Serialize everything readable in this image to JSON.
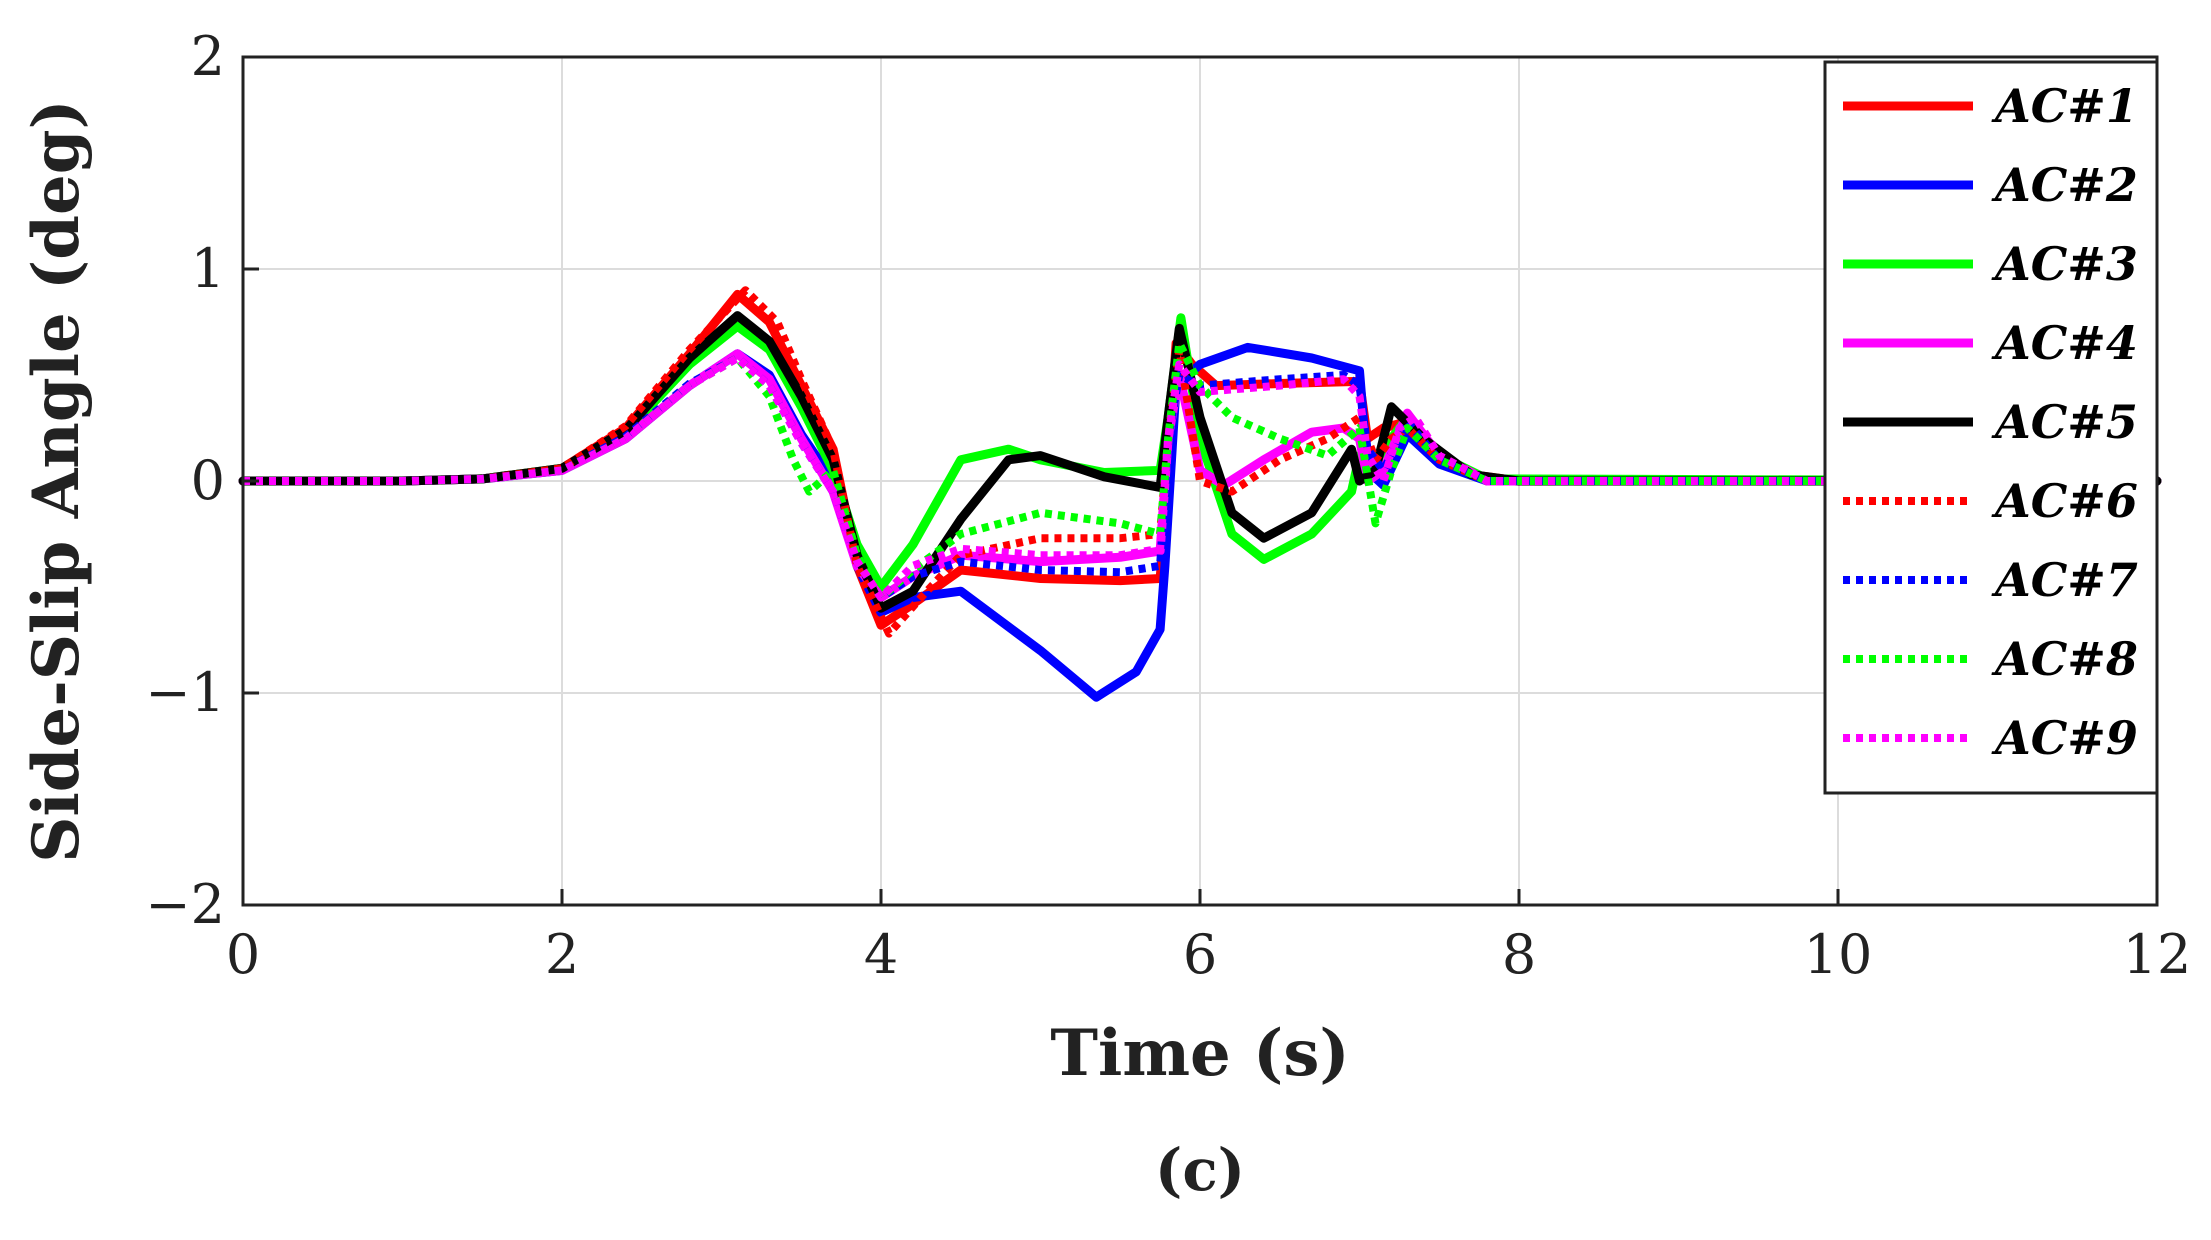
{
  "chart_data": {
    "type": "line",
    "xlabel": "Time (s)",
    "ylabel": "Side-Slip Angle (deg)",
    "caption": "(c)",
    "xlim": [
      0,
      12
    ],
    "ylim": [
      -2,
      2
    ],
    "xticks": [
      "0",
      "2",
      "4",
      "6",
      "8",
      "10",
      "12"
    ],
    "yticks": [
      "2",
      "1",
      "0",
      "−1",
      "−2"
    ],
    "grid": true,
    "legend_position": "top-right",
    "series": [
      {
        "name": "AC#1",
        "color": "#ff0000",
        "style": "solid",
        "points": [
          [
            0,
            0
          ],
          [
            1,
            0
          ],
          [
            1.5,
            0.01
          ],
          [
            2,
            0.06
          ],
          [
            2.4,
            0.25
          ],
          [
            2.8,
            0.6
          ],
          [
            3.1,
            0.88
          ],
          [
            3.3,
            0.75
          ],
          [
            3.5,
            0.45
          ],
          [
            3.7,
            0.15
          ],
          [
            3.85,
            -0.4
          ],
          [
            4.0,
            -0.68
          ],
          [
            4.2,
            -0.58
          ],
          [
            4.5,
            -0.42
          ],
          [
            5.0,
            -0.46
          ],
          [
            5.5,
            -0.47
          ],
          [
            5.75,
            -0.46
          ],
          [
            5.78,
            -0.2
          ],
          [
            5.85,
            0.65
          ],
          [
            5.95,
            0.55
          ],
          [
            6.1,
            0.45
          ],
          [
            6.5,
            0.46
          ],
          [
            7.0,
            0.47
          ],
          [
            7.05,
            0.2
          ],
          [
            7.15,
            0.25
          ],
          [
            7.3,
            0.28
          ],
          [
            7.5,
            0.12
          ],
          [
            7.7,
            0.03
          ],
          [
            8.0,
            0
          ],
          [
            12,
            0
          ]
        ]
      },
      {
        "name": "AC#2",
        "color": "#0000ff",
        "style": "solid",
        "points": [
          [
            0,
            0
          ],
          [
            1,
            0
          ],
          [
            1.5,
            0.01
          ],
          [
            2,
            0.05
          ],
          [
            2.4,
            0.2
          ],
          [
            2.8,
            0.45
          ],
          [
            3.1,
            0.6
          ],
          [
            3.3,
            0.5
          ],
          [
            3.5,
            0.22
          ],
          [
            3.7,
            0.0
          ],
          [
            3.85,
            -0.4
          ],
          [
            4.0,
            -0.62
          ],
          [
            4.2,
            -0.55
          ],
          [
            4.5,
            -0.52
          ],
          [
            5.0,
            -0.8
          ],
          [
            5.35,
            -1.02
          ],
          [
            5.6,
            -0.9
          ],
          [
            5.75,
            -0.7
          ],
          [
            5.78,
            -0.4
          ],
          [
            5.85,
            0.45
          ],
          [
            6.0,
            0.55
          ],
          [
            6.3,
            0.63
          ],
          [
            6.7,
            0.58
          ],
          [
            7.0,
            0.52
          ],
          [
            7.05,
            0.05
          ],
          [
            7.15,
            -0.02
          ],
          [
            7.3,
            0.22
          ],
          [
            7.5,
            0.08
          ],
          [
            7.8,
            0.0
          ],
          [
            12,
            0
          ]
        ]
      },
      {
        "name": "AC#3",
        "color": "#00ff00",
        "style": "solid",
        "points": [
          [
            0,
            0
          ],
          [
            1,
            0
          ],
          [
            1.5,
            0.01
          ],
          [
            2,
            0.06
          ],
          [
            2.4,
            0.23
          ],
          [
            2.8,
            0.55
          ],
          [
            3.1,
            0.73
          ],
          [
            3.3,
            0.62
          ],
          [
            3.5,
            0.35
          ],
          [
            3.7,
            0.05
          ],
          [
            3.85,
            -0.3
          ],
          [
            4.0,
            -0.5
          ],
          [
            4.2,
            -0.3
          ],
          [
            4.5,
            0.1
          ],
          [
            4.8,
            0.15
          ],
          [
            5.0,
            0.1
          ],
          [
            5.4,
            0.04
          ],
          [
            5.75,
            0.05
          ],
          [
            5.8,
            0.3
          ],
          [
            5.88,
            0.77
          ],
          [
            6.0,
            0.2
          ],
          [
            6.2,
            -0.25
          ],
          [
            6.4,
            -0.37
          ],
          [
            6.7,
            -0.25
          ],
          [
            6.95,
            -0.05
          ],
          [
            7.0,
            0.12
          ],
          [
            7.05,
            0.02
          ],
          [
            7.15,
            0.15
          ],
          [
            7.3,
            0.3
          ],
          [
            7.5,
            0.12
          ],
          [
            7.8,
            0.01
          ],
          [
            12,
            0
          ]
        ]
      },
      {
        "name": "AC#4",
        "color": "#ff00ff",
        "style": "solid",
        "points": [
          [
            0,
            0
          ],
          [
            1,
            0
          ],
          [
            1.5,
            0.01
          ],
          [
            2,
            0.05
          ],
          [
            2.4,
            0.2
          ],
          [
            2.8,
            0.45
          ],
          [
            3.1,
            0.6
          ],
          [
            3.3,
            0.48
          ],
          [
            3.5,
            0.2
          ],
          [
            3.7,
            -0.05
          ],
          [
            3.85,
            -0.4
          ],
          [
            4.0,
            -0.55
          ],
          [
            4.2,
            -0.45
          ],
          [
            4.5,
            -0.35
          ],
          [
            5.0,
            -0.38
          ],
          [
            5.5,
            -0.36
          ],
          [
            5.75,
            -0.33
          ],
          [
            5.8,
            0.2
          ],
          [
            5.87,
            0.5
          ],
          [
            6.0,
            0.05
          ],
          [
            6.15,
            -0.02
          ],
          [
            6.4,
            0.1
          ],
          [
            6.7,
            0.23
          ],
          [
            6.9,
            0.25
          ],
          [
            7.0,
            0.2
          ],
          [
            7.05,
            0.0
          ],
          [
            7.15,
            0.05
          ],
          [
            7.3,
            0.32
          ],
          [
            7.5,
            0.12
          ],
          [
            7.8,
            0.0
          ],
          [
            12,
            0
          ]
        ]
      },
      {
        "name": "AC#5",
        "color": "#000000",
        "style": "solid",
        "points": [
          [
            0,
            0
          ],
          [
            1,
            0
          ],
          [
            1.5,
            0.01
          ],
          [
            2,
            0.06
          ],
          [
            2.4,
            0.24
          ],
          [
            2.8,
            0.58
          ],
          [
            3.1,
            0.78
          ],
          [
            3.3,
            0.66
          ],
          [
            3.5,
            0.4
          ],
          [
            3.7,
            0.1
          ],
          [
            3.85,
            -0.35
          ],
          [
            4.0,
            -0.6
          ],
          [
            4.2,
            -0.52
          ],
          [
            4.5,
            -0.18
          ],
          [
            4.8,
            0.1
          ],
          [
            5.0,
            0.12
          ],
          [
            5.4,
            0.02
          ],
          [
            5.75,
            -0.03
          ],
          [
            5.8,
            0.3
          ],
          [
            5.87,
            0.72
          ],
          [
            6.0,
            0.3
          ],
          [
            6.2,
            -0.15
          ],
          [
            6.4,
            -0.27
          ],
          [
            6.7,
            -0.15
          ],
          [
            6.95,
            0.15
          ],
          [
            7.0,
            0.0
          ],
          [
            7.1,
            0.05
          ],
          [
            7.2,
            0.35
          ],
          [
            7.4,
            0.2
          ],
          [
            7.7,
            0.03
          ],
          [
            8.0,
            0
          ],
          [
            12,
            0
          ]
        ]
      },
      {
        "name": "AC#6",
        "color": "#ff0000",
        "style": "dotted",
        "points": [
          [
            0,
            0
          ],
          [
            1,
            0
          ],
          [
            1.5,
            0.01
          ],
          [
            2,
            0.06
          ],
          [
            2.4,
            0.26
          ],
          [
            2.8,
            0.62
          ],
          [
            3.15,
            0.9
          ],
          [
            3.35,
            0.75
          ],
          [
            3.5,
            0.48
          ],
          [
            3.7,
            0.15
          ],
          [
            3.85,
            -0.4
          ],
          [
            4.05,
            -0.72
          ],
          [
            4.25,
            -0.55
          ],
          [
            4.5,
            -0.35
          ],
          [
            5.0,
            -0.27
          ],
          [
            5.5,
            -0.27
          ],
          [
            5.75,
            -0.25
          ],
          [
            5.8,
            0.2
          ],
          [
            5.87,
            0.62
          ],
          [
            6.0,
            0.0
          ],
          [
            6.2,
            -0.05
          ],
          [
            6.5,
            0.1
          ],
          [
            6.8,
            0.2
          ],
          [
            7.0,
            0.3
          ],
          [
            7.1,
            0.1
          ],
          [
            7.2,
            0.2
          ],
          [
            7.3,
            0.25
          ],
          [
            7.5,
            0.1
          ],
          [
            7.8,
            0.0
          ],
          [
            12,
            0
          ]
        ]
      },
      {
        "name": "AC#7",
        "color": "#0000ff",
        "style": "dotted",
        "points": [
          [
            0,
            0
          ],
          [
            1,
            0
          ],
          [
            1.5,
            0.01
          ],
          [
            2,
            0.05
          ],
          [
            2.4,
            0.21
          ],
          [
            2.8,
            0.46
          ],
          [
            3.1,
            0.58
          ],
          [
            3.3,
            0.45
          ],
          [
            3.5,
            0.18
          ],
          [
            3.7,
            -0.05
          ],
          [
            3.85,
            -0.38
          ],
          [
            4.0,
            -0.55
          ],
          [
            4.2,
            -0.45
          ],
          [
            4.5,
            -0.38
          ],
          [
            5.0,
            -0.42
          ],
          [
            5.5,
            -0.43
          ],
          [
            5.75,
            -0.4
          ],
          [
            5.8,
            0.2
          ],
          [
            5.87,
            0.5
          ],
          [
            6.0,
            0.45
          ],
          [
            6.5,
            0.48
          ],
          [
            6.9,
            0.5
          ],
          [
            7.0,
            0.45
          ],
          [
            7.05,
            0.15
          ],
          [
            7.15,
            0.05
          ],
          [
            7.3,
            0.28
          ],
          [
            7.5,
            0.1
          ],
          [
            7.8,
            0.0
          ],
          [
            12,
            0
          ]
        ]
      },
      {
        "name": "AC#8",
        "color": "#00ff00",
        "style": "dotted",
        "points": [
          [
            0,
            0
          ],
          [
            1,
            0
          ],
          [
            1.5,
            0.01
          ],
          [
            2,
            0.05
          ],
          [
            2.4,
            0.2
          ],
          [
            2.8,
            0.45
          ],
          [
            3.1,
            0.58
          ],
          [
            3.3,
            0.4
          ],
          [
            3.45,
            0.1
          ],
          [
            3.55,
            -0.05
          ],
          [
            3.7,
            0.05
          ],
          [
            3.85,
            -0.35
          ],
          [
            4.0,
            -0.55
          ],
          [
            4.2,
            -0.42
          ],
          [
            4.5,
            -0.25
          ],
          [
            5.0,
            -0.15
          ],
          [
            5.5,
            -0.2
          ],
          [
            5.75,
            -0.25
          ],
          [
            5.8,
            0.2
          ],
          [
            5.87,
            0.65
          ],
          [
            6.0,
            0.45
          ],
          [
            6.2,
            0.3
          ],
          [
            6.5,
            0.2
          ],
          [
            6.8,
            0.12
          ],
          [
            7.0,
            0.25
          ],
          [
            7.1,
            -0.2
          ],
          [
            7.2,
            0.05
          ],
          [
            7.3,
            0.25
          ],
          [
            7.5,
            0.1
          ],
          [
            7.8,
            0.0
          ],
          [
            12,
            0
          ]
        ]
      },
      {
        "name": "AC#9",
        "color": "#ff00ff",
        "style": "dotted",
        "points": [
          [
            0,
            0
          ],
          [
            1,
            0
          ],
          [
            1.5,
            0.01
          ],
          [
            2,
            0.05
          ],
          [
            2.4,
            0.2
          ],
          [
            2.8,
            0.45
          ],
          [
            3.1,
            0.58
          ],
          [
            3.3,
            0.45
          ],
          [
            3.5,
            0.18
          ],
          [
            3.7,
            -0.05
          ],
          [
            3.85,
            -0.38
          ],
          [
            4.0,
            -0.55
          ],
          [
            4.2,
            -0.4
          ],
          [
            4.5,
            -0.32
          ],
          [
            5.0,
            -0.35
          ],
          [
            5.5,
            -0.35
          ],
          [
            5.75,
            -0.32
          ],
          [
            5.8,
            0.2
          ],
          [
            5.87,
            0.55
          ],
          [
            6.0,
            0.42
          ],
          [
            6.5,
            0.45
          ],
          [
            6.9,
            0.48
          ],
          [
            7.0,
            0.4
          ],
          [
            7.05,
            0.12
          ],
          [
            7.15,
            0.0
          ],
          [
            7.25,
            0.25
          ],
          [
            7.35,
            0.3
          ],
          [
            7.5,
            0.12
          ],
          [
            7.8,
            0.0
          ],
          [
            12,
            0
          ]
        ]
      }
    ]
  }
}
